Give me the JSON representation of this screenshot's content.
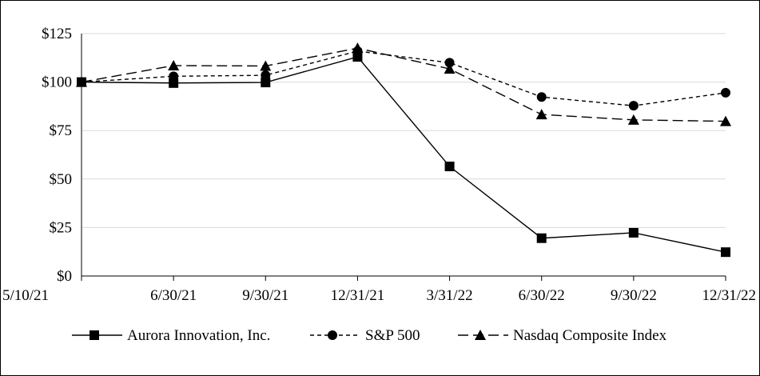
{
  "chart_data": {
    "type": "line",
    "categories": [
      "5/10/21",
      "6/30/21",
      "9/30/21",
      "12/31/21",
      "3/31/22",
      "6/30/22",
      "9/30/22",
      "12/31/22"
    ],
    "y_ticks": [
      "$0",
      "$25",
      "$50",
      "$75",
      "$100",
      "$125"
    ],
    "ylim": [
      0,
      125
    ],
    "y_tick_step": 25,
    "grid": "horizontal",
    "legend_position": "bottom",
    "series": [
      {
        "name": "Aurora Innovation, Inc.",
        "values": [
          100,
          99.5,
          99.8,
          113,
          56.5,
          19.5,
          22.3,
          12.3
        ],
        "marker": "square",
        "dash": "solid",
        "color": "#000000"
      },
      {
        "name": "S&P 500",
        "values": [
          100,
          103,
          103.5,
          116,
          110,
          92.3,
          87.8,
          94.5
        ],
        "marker": "circle",
        "dash": "short-dash",
        "color": "#000000"
      },
      {
        "name": "Nasdaq Composite Index",
        "values": [
          100,
          108.5,
          108.3,
          117.5,
          106.8,
          83.3,
          80.5,
          79.8
        ],
        "marker": "triangle",
        "dash": "long-dash",
        "color": "#000000"
      }
    ]
  }
}
